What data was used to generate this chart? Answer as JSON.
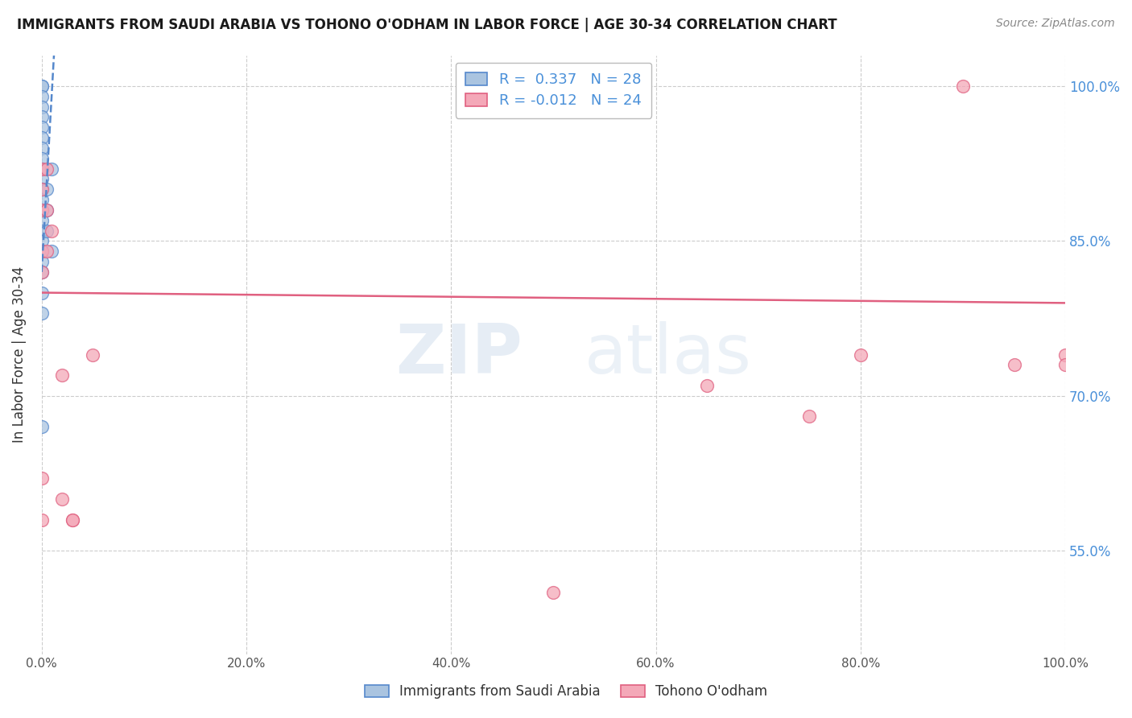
{
  "title": "IMMIGRANTS FROM SAUDI ARABIA VS TOHONO O'ODHAM IN LABOR FORCE | AGE 30-34 CORRELATION CHART",
  "source": "Source: ZipAtlas.com",
  "ylabel": "In Labor Force | Age 30-34",
  "xlim": [
    0.0,
    1.0
  ],
  "ylim": [
    0.45,
    1.03
  ],
  "x_tick_labels": [
    "0.0%",
    "20.0%",
    "40.0%",
    "60.0%",
    "80.0%",
    "100.0%"
  ],
  "x_tick_values": [
    0.0,
    0.2,
    0.4,
    0.6,
    0.8,
    1.0
  ],
  "y_tick_labels": [
    "55.0%",
    "70.0%",
    "85.0%",
    "100.0%"
  ],
  "y_tick_values": [
    0.55,
    0.7,
    0.85,
    1.0
  ],
  "blue_color": "#aac4e0",
  "pink_color": "#f4a8b8",
  "trendline_blue": "#5588cc",
  "trendline_pink": "#e06080",
  "watermark_zip": "ZIP",
  "watermark_atlas": "atlas",
  "blue_scatter_x": [
    0.0,
    0.0,
    0.0,
    0.0,
    0.0,
    0.0,
    0.0,
    0.0,
    0.0,
    0.0,
    0.0,
    0.0,
    0.0,
    0.0,
    0.0,
    0.0,
    0.0,
    0.0,
    0.0,
    0.0,
    0.0,
    0.0,
    0.0,
    0.005,
    0.005,
    0.005,
    0.01,
    0.01
  ],
  "blue_scatter_y": [
    1.0,
    1.0,
    0.99,
    0.98,
    0.97,
    0.96,
    0.95,
    0.94,
    0.93,
    0.92,
    0.91,
    0.9,
    0.89,
    0.88,
    0.87,
    0.86,
    0.85,
    0.84,
    0.83,
    0.82,
    0.8,
    0.78,
    0.67,
    0.9,
    0.88,
    0.86,
    0.92,
    0.84
  ],
  "pink_scatter_x": [
    0.0,
    0.0,
    0.0,
    0.0,
    0.0,
    0.0,
    0.0,
    0.005,
    0.005,
    0.005,
    0.01,
    0.02,
    0.02,
    0.03,
    0.03,
    0.05,
    0.5,
    0.65,
    0.75,
    0.8,
    0.9,
    0.95,
    1.0,
    1.0
  ],
  "pink_scatter_y": [
    0.92,
    0.9,
    0.88,
    0.84,
    0.82,
    0.62,
    0.58,
    0.92,
    0.88,
    0.84,
    0.86,
    0.72,
    0.6,
    0.58,
    0.58,
    0.74,
    0.51,
    0.71,
    0.68,
    0.74,
    1.0,
    0.73,
    0.74,
    0.73
  ],
  "blue_trend_x": [
    0.0,
    0.012
  ],
  "blue_trend_y": [
    0.82,
    1.03
  ],
  "pink_trend_x": [
    0.0,
    1.0
  ],
  "pink_trend_y": [
    0.8,
    0.79
  ]
}
